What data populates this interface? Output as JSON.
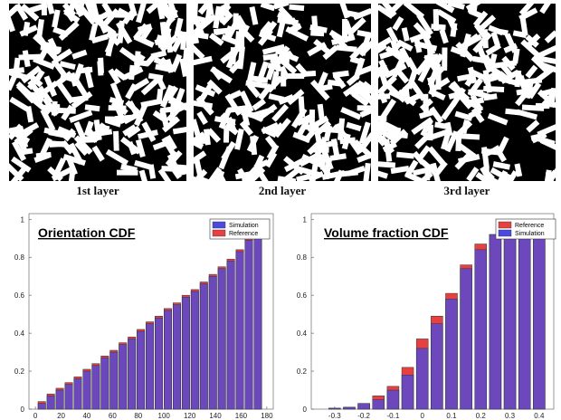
{
  "layers": {
    "labels": [
      "1st layer",
      "2nd layer",
      "3rd layer"
    ],
    "colors": {
      "fiber": "#ffffff",
      "matrix": "#000000"
    }
  },
  "chart_data": [
    {
      "type": "bar",
      "title": "Orientation CDF",
      "xlabel": "",
      "ylabel": "",
      "x_ticks": [
        0,
        20,
        40,
        60,
        80,
        100,
        120,
        140,
        160,
        180
      ],
      "y_ticks": [
        0,
        0.2,
        0.4,
        0.6,
        0.8,
        1
      ],
      "xlim": [
        -5,
        185
      ],
      "ylim": [
        0,
        1.03
      ],
      "x": [
        5,
        12,
        19,
        26,
        33,
        40,
        47,
        54,
        61,
        68,
        75,
        82,
        89,
        96,
        103,
        110,
        117,
        124,
        131,
        138,
        145,
        152,
        159,
        166,
        173
      ],
      "series": [
        {
          "name": "Simulation",
          "color": "#4a4ae0",
          "values": [
            0.03,
            0.07,
            0.1,
            0.13,
            0.16,
            0.2,
            0.23,
            0.27,
            0.3,
            0.34,
            0.37,
            0.41,
            0.45,
            0.48,
            0.52,
            0.55,
            0.59,
            0.62,
            0.66,
            0.7,
            0.74,
            0.78,
            0.83,
            0.89,
            0.96
          ]
        },
        {
          "name": "Reference",
          "color": "#e64040",
          "values": [
            0.04,
            0.08,
            0.11,
            0.14,
            0.17,
            0.21,
            0.24,
            0.28,
            0.31,
            0.35,
            0.38,
            0.42,
            0.46,
            0.49,
            0.53,
            0.56,
            0.6,
            0.63,
            0.67,
            0.71,
            0.75,
            0.79,
            0.84,
            0.9,
            0.97
          ]
        }
      ],
      "legend": "top-right",
      "legend_order": [
        "Simulation",
        "Reference"
      ],
      "grid": false
    },
    {
      "type": "bar",
      "title": "Volume fraction CDF",
      "xlabel": "",
      "ylabel": "",
      "x_ticks": [
        -0.3,
        -0.2,
        -0.1,
        0,
        0.1,
        0.2,
        0.3,
        0.4
      ],
      "y_ticks": [
        0,
        0.2,
        0.4,
        0.6,
        0.8,
        1
      ],
      "xlim": [
        -0.38,
        0.45
      ],
      "ylim": [
        0,
        1.03
      ],
      "x": [
        -0.3,
        -0.25,
        -0.2,
        -0.15,
        -0.1,
        -0.05,
        0,
        0.05,
        0.1,
        0.15,
        0.2,
        0.25,
        0.3,
        0.35,
        0.4
      ],
      "series": [
        {
          "name": "Reference",
          "color": "#e64040",
          "values": [
            0.005,
            0.01,
            0.03,
            0.07,
            0.12,
            0.22,
            0.37,
            0.49,
            0.61,
            0.76,
            0.87,
            0.92,
            0.98,
            0.99,
            1.0
          ]
        },
        {
          "name": "Simulation",
          "color": "#4a4ae0",
          "values": [
            0.005,
            0.01,
            0.03,
            0.05,
            0.1,
            0.18,
            0.32,
            0.45,
            0.58,
            0.74,
            0.84,
            0.92,
            0.97,
            0.99,
            1.0
          ]
        }
      ],
      "legend": "top-right",
      "legend_order": [
        "Reference",
        "Simulation"
      ],
      "grid": false
    }
  ]
}
